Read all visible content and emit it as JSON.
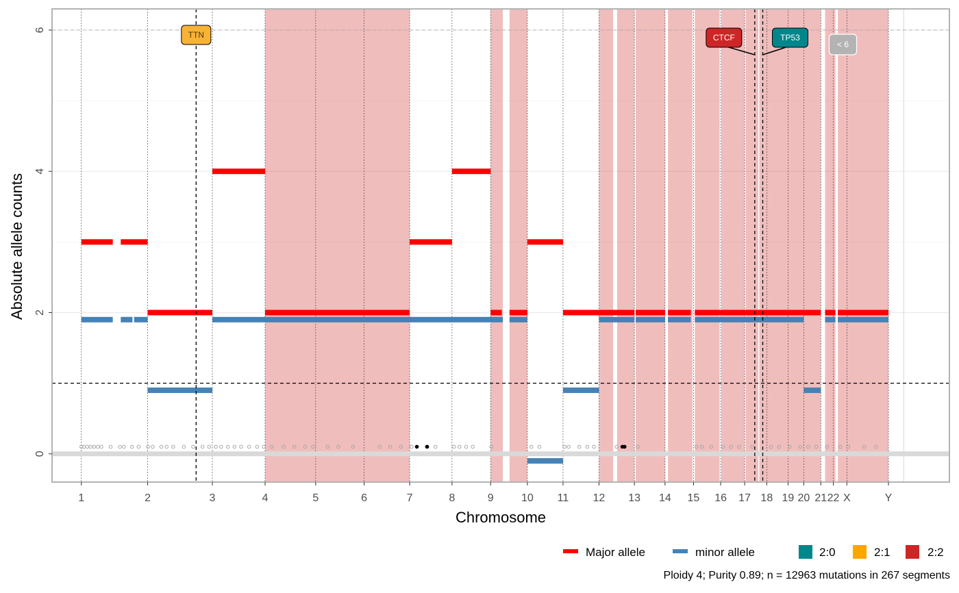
{
  "chart_data": {
    "type": "segments",
    "xlabel": "Chromosome",
    "ylabel": "Absolute allele counts",
    "ylim": [
      -0.4,
      6.3
    ],
    "yticks": [
      0,
      2,
      4,
      6
    ],
    "genome_mb": 3100,
    "ploidy_line": 1,
    "max_line": 6,
    "chromosomes": [
      {
        "name": "1",
        "start": 0,
        "end": 249
      },
      {
        "name": "2",
        "start": 249,
        "end": 492
      },
      {
        "name": "3",
        "start": 492,
        "end": 690
      },
      {
        "name": "4",
        "start": 690,
        "end": 880
      },
      {
        "name": "5",
        "start": 880,
        "end": 1062
      },
      {
        "name": "6",
        "start": 1062,
        "end": 1233
      },
      {
        "name": "7",
        "start": 1233,
        "end": 1392
      },
      {
        "name": "8",
        "start": 1392,
        "end": 1537
      },
      {
        "name": "9",
        "start": 1537,
        "end": 1675
      },
      {
        "name": "10",
        "start": 1675,
        "end": 1809
      },
      {
        "name": "11",
        "start": 1809,
        "end": 1944
      },
      {
        "name": "12",
        "start": 1944,
        "end": 2077
      },
      {
        "name": "13",
        "start": 2077,
        "end": 2192
      },
      {
        "name": "14",
        "start": 2192,
        "end": 2299
      },
      {
        "name": "15",
        "start": 2299,
        "end": 2401
      },
      {
        "name": "16",
        "start": 2401,
        "end": 2491
      },
      {
        "name": "17",
        "start": 2491,
        "end": 2574
      },
      {
        "name": "18",
        "start": 2574,
        "end": 2654
      },
      {
        "name": "19",
        "start": 2654,
        "end": 2713
      },
      {
        "name": "20",
        "start": 2713,
        "end": 2777
      },
      {
        "name": "21",
        "start": 2777,
        "end": 2824
      },
      {
        "name": "22",
        "start": 2824,
        "end": 2875
      },
      {
        "name": "X",
        "start": 2875,
        "end": 3031
      },
      {
        "name": "Y",
        "start": 3031,
        "end": 3088
      }
    ],
    "tick_chromosomes": [
      "1",
      "2",
      "3",
      "4",
      "5",
      "6",
      "7",
      "8",
      "9",
      "10",
      "11",
      "12",
      "13",
      "14",
      "15",
      "16",
      "17",
      "18",
      "19",
      "20",
      "21",
      "22",
      "X",
      "Y"
    ],
    "highlight_regions_2_2": [
      [
        690,
        1233
      ],
      [
        1537,
        1583
      ],
      [
        1608,
        1675
      ],
      [
        1944,
        1997
      ],
      [
        2012,
        2077
      ],
      [
        2082,
        2192
      ],
      [
        2203,
        2295
      ],
      [
        2304,
        2397
      ],
      [
        2403,
        2491
      ],
      [
        2495,
        2542
      ],
      [
        2546,
        2777
      ],
      [
        2793,
        2832
      ],
      [
        2841,
        3031
      ]
    ],
    "series": [
      {
        "name": "Major allele",
        "segments": [
          {
            "start": 0,
            "end": 118,
            "value": 3
          },
          {
            "start": 148,
            "end": 249,
            "value": 3
          },
          {
            "start": 249,
            "end": 492,
            "value": 2
          },
          {
            "start": 492,
            "end": 690,
            "value": 4
          },
          {
            "start": 690,
            "end": 1233,
            "value": 2
          },
          {
            "start": 1233,
            "end": 1392,
            "value": 3
          },
          {
            "start": 1392,
            "end": 1537,
            "value": 4
          },
          {
            "start": 1537,
            "end": 1579,
            "value": 2
          },
          {
            "start": 1608,
            "end": 1675,
            "value": 2
          },
          {
            "start": 1675,
            "end": 1809,
            "value": 3
          },
          {
            "start": 1809,
            "end": 2077,
            "value": 2
          },
          {
            "start": 2082,
            "end": 2192,
            "value": 2
          },
          {
            "start": 2203,
            "end": 2289,
            "value": 2
          },
          {
            "start": 2304,
            "end": 2777,
            "value": 2
          },
          {
            "start": 2793,
            "end": 2832,
            "value": 2
          },
          {
            "start": 2841,
            "end": 3031,
            "value": 2
          }
        ]
      },
      {
        "name": "minor allele",
        "segments": [
          {
            "start": 0,
            "end": 118,
            "value": 1.9
          },
          {
            "start": 148,
            "end": 192,
            "value": 1.9
          },
          {
            "start": 198,
            "end": 249,
            "value": 1.9
          },
          {
            "start": 249,
            "end": 492,
            "value": 0.9
          },
          {
            "start": 492,
            "end": 1583,
            "value": 1.9
          },
          {
            "start": 1608,
            "end": 1675,
            "value": 1.9
          },
          {
            "start": 1675,
            "end": 1809,
            "value": -0.1
          },
          {
            "start": 1809,
            "end": 1944,
            "value": 0.9
          },
          {
            "start": 1944,
            "end": 2077,
            "value": 1.9
          },
          {
            "start": 2082,
            "end": 2192,
            "value": 1.9
          },
          {
            "start": 2203,
            "end": 2289,
            "value": 1.9
          },
          {
            "start": 2304,
            "end": 2713,
            "value": 1.9
          },
          {
            "start": 2713,
            "end": 2777,
            "value": 0.9
          },
          {
            "start": 2793,
            "end": 2832,
            "value": 1.9
          },
          {
            "start": 2841,
            "end": 3031,
            "value": 1.9
          }
        ]
      }
    ],
    "mutations": [
      {
        "pos": 0,
        "value": 0.1
      },
      {
        "pos": 10,
        "value": 0.1
      },
      {
        "pos": 22,
        "value": 0.1
      },
      {
        "pos": 35,
        "value": 0.1
      },
      {
        "pos": 48,
        "value": 0.1
      },
      {
        "pos": 62,
        "value": 0.1
      },
      {
        "pos": 75,
        "value": 0.1
      },
      {
        "pos": 110,
        "value": 0.1
      },
      {
        "pos": 145,
        "value": 0.1
      },
      {
        "pos": 160,
        "value": 0.1
      },
      {
        "pos": 190,
        "value": 0.1
      },
      {
        "pos": 215,
        "value": 0.1
      },
      {
        "pos": 250,
        "value": 0.1
      },
      {
        "pos": 268,
        "value": 0.1
      },
      {
        "pos": 300,
        "value": 0.1
      },
      {
        "pos": 320,
        "value": 0.1
      },
      {
        "pos": 345,
        "value": 0.1
      },
      {
        "pos": 385,
        "value": 0.1
      },
      {
        "pos": 420,
        "value": 0.1
      },
      {
        "pos": 455,
        "value": 0.1
      },
      {
        "pos": 480,
        "value": 0.1
      },
      {
        "pos": 505,
        "value": 0.1
      },
      {
        "pos": 525,
        "value": 0.1
      },
      {
        "pos": 550,
        "value": 0.1
      },
      {
        "pos": 575,
        "value": 0.1
      },
      {
        "pos": 600,
        "value": 0.1
      },
      {
        "pos": 630,
        "value": 0.1
      },
      {
        "pos": 660,
        "value": 0.1
      },
      {
        "pos": 685,
        "value": 0.1
      },
      {
        "pos": 715,
        "value": 0.1
      },
      {
        "pos": 760,
        "value": 0.1
      },
      {
        "pos": 800,
        "value": 0.1
      },
      {
        "pos": 840,
        "value": 0.1
      },
      {
        "pos": 870,
        "value": 0.1
      },
      {
        "pos": 925,
        "value": 0.1
      },
      {
        "pos": 965,
        "value": 0.1
      },
      {
        "pos": 1020,
        "value": 0.1
      },
      {
        "pos": 1120,
        "value": 0.1
      },
      {
        "pos": 1160,
        "value": 0.1
      },
      {
        "pos": 1200,
        "value": 0.1
      },
      {
        "pos": 1240,
        "value": 0.1
      },
      {
        "pos": 1300,
        "value": 0.1
      },
      {
        "pos": 1330,
        "value": 0.1
      },
      {
        "pos": 1400,
        "value": 0.1
      },
      {
        "pos": 1420,
        "value": 0.1
      },
      {
        "pos": 1445,
        "value": 0.1
      },
      {
        "pos": 1470,
        "value": 0.1
      },
      {
        "pos": 1540,
        "value": 0.1
      },
      {
        "pos": 1690,
        "value": 0.1
      },
      {
        "pos": 1720,
        "value": 0.1
      },
      {
        "pos": 1815,
        "value": 0.1
      },
      {
        "pos": 1830,
        "value": 0.1
      },
      {
        "pos": 1870,
        "value": 0.1
      },
      {
        "pos": 1900,
        "value": 0.1
      },
      {
        "pos": 1925,
        "value": 0.1
      },
      {
        "pos": 2010,
        "value": 0.1
      },
      {
        "pos": 2090,
        "value": 0.1
      },
      {
        "pos": 2310,
        "value": 0.1
      },
      {
        "pos": 2330,
        "value": 0.1
      },
      {
        "pos": 2365,
        "value": 0.1
      },
      {
        "pos": 2410,
        "value": 0.1
      },
      {
        "pos": 2440,
        "value": 0.1
      },
      {
        "pos": 2470,
        "value": 0.1
      },
      {
        "pos": 2520,
        "value": 0.1
      },
      {
        "pos": 2590,
        "value": 0.1
      },
      {
        "pos": 2620,
        "value": 0.1
      },
      {
        "pos": 2660,
        "value": 0.1
      },
      {
        "pos": 2700,
        "value": 0.1
      },
      {
        "pos": 2730,
        "value": 0.1
      },
      {
        "pos": 2760,
        "value": 0.1
      },
      {
        "pos": 2800,
        "value": 0.1
      },
      {
        "pos": 2850,
        "value": 0.1
      },
      {
        "pos": 2880,
        "value": 0.1
      },
      {
        "pos": 2940,
        "value": 0.1
      },
      {
        "pos": 2985,
        "value": 0.1
      }
    ],
    "driver_mutations": [
      {
        "pos": 1260,
        "value": 0.1
      },
      {
        "pos": 1298,
        "value": 0.1
      },
      {
        "pos": 2032,
        "value": 0.1
      },
      {
        "pos": 2040,
        "value": 0.1
      }
    ],
    "genes": [
      {
        "label": "TTN",
        "pos": 431,
        "fill": "#F8B337",
        "text_color": "#4d3600"
      },
      {
        "label": "CTCF",
        "pos": 2529,
        "fill": "#CD2626",
        "text_color": "#ffffff"
      },
      {
        "label": "TP53",
        "pos": 2559,
        "fill": "#00868B",
        "text_color": "#ffffff"
      }
    ],
    "below_cutoff_label": "< 6",
    "legend": {
      "alleles": [
        {
          "label": "Major allele",
          "color": "#FF0000"
        },
        {
          "label": "minor allele",
          "color": "#4682B4"
        }
      ],
      "karyotypes": [
        {
          "label": "2:0",
          "color": "#00868B"
        },
        {
          "label": "2:1",
          "color": "#FFA500"
        },
        {
          "label": "2:2",
          "color": "#CD2626"
        }
      ]
    },
    "caption": "Ploidy 4; Purity  0.89; n = 12963 mutations in 267 segments"
  }
}
